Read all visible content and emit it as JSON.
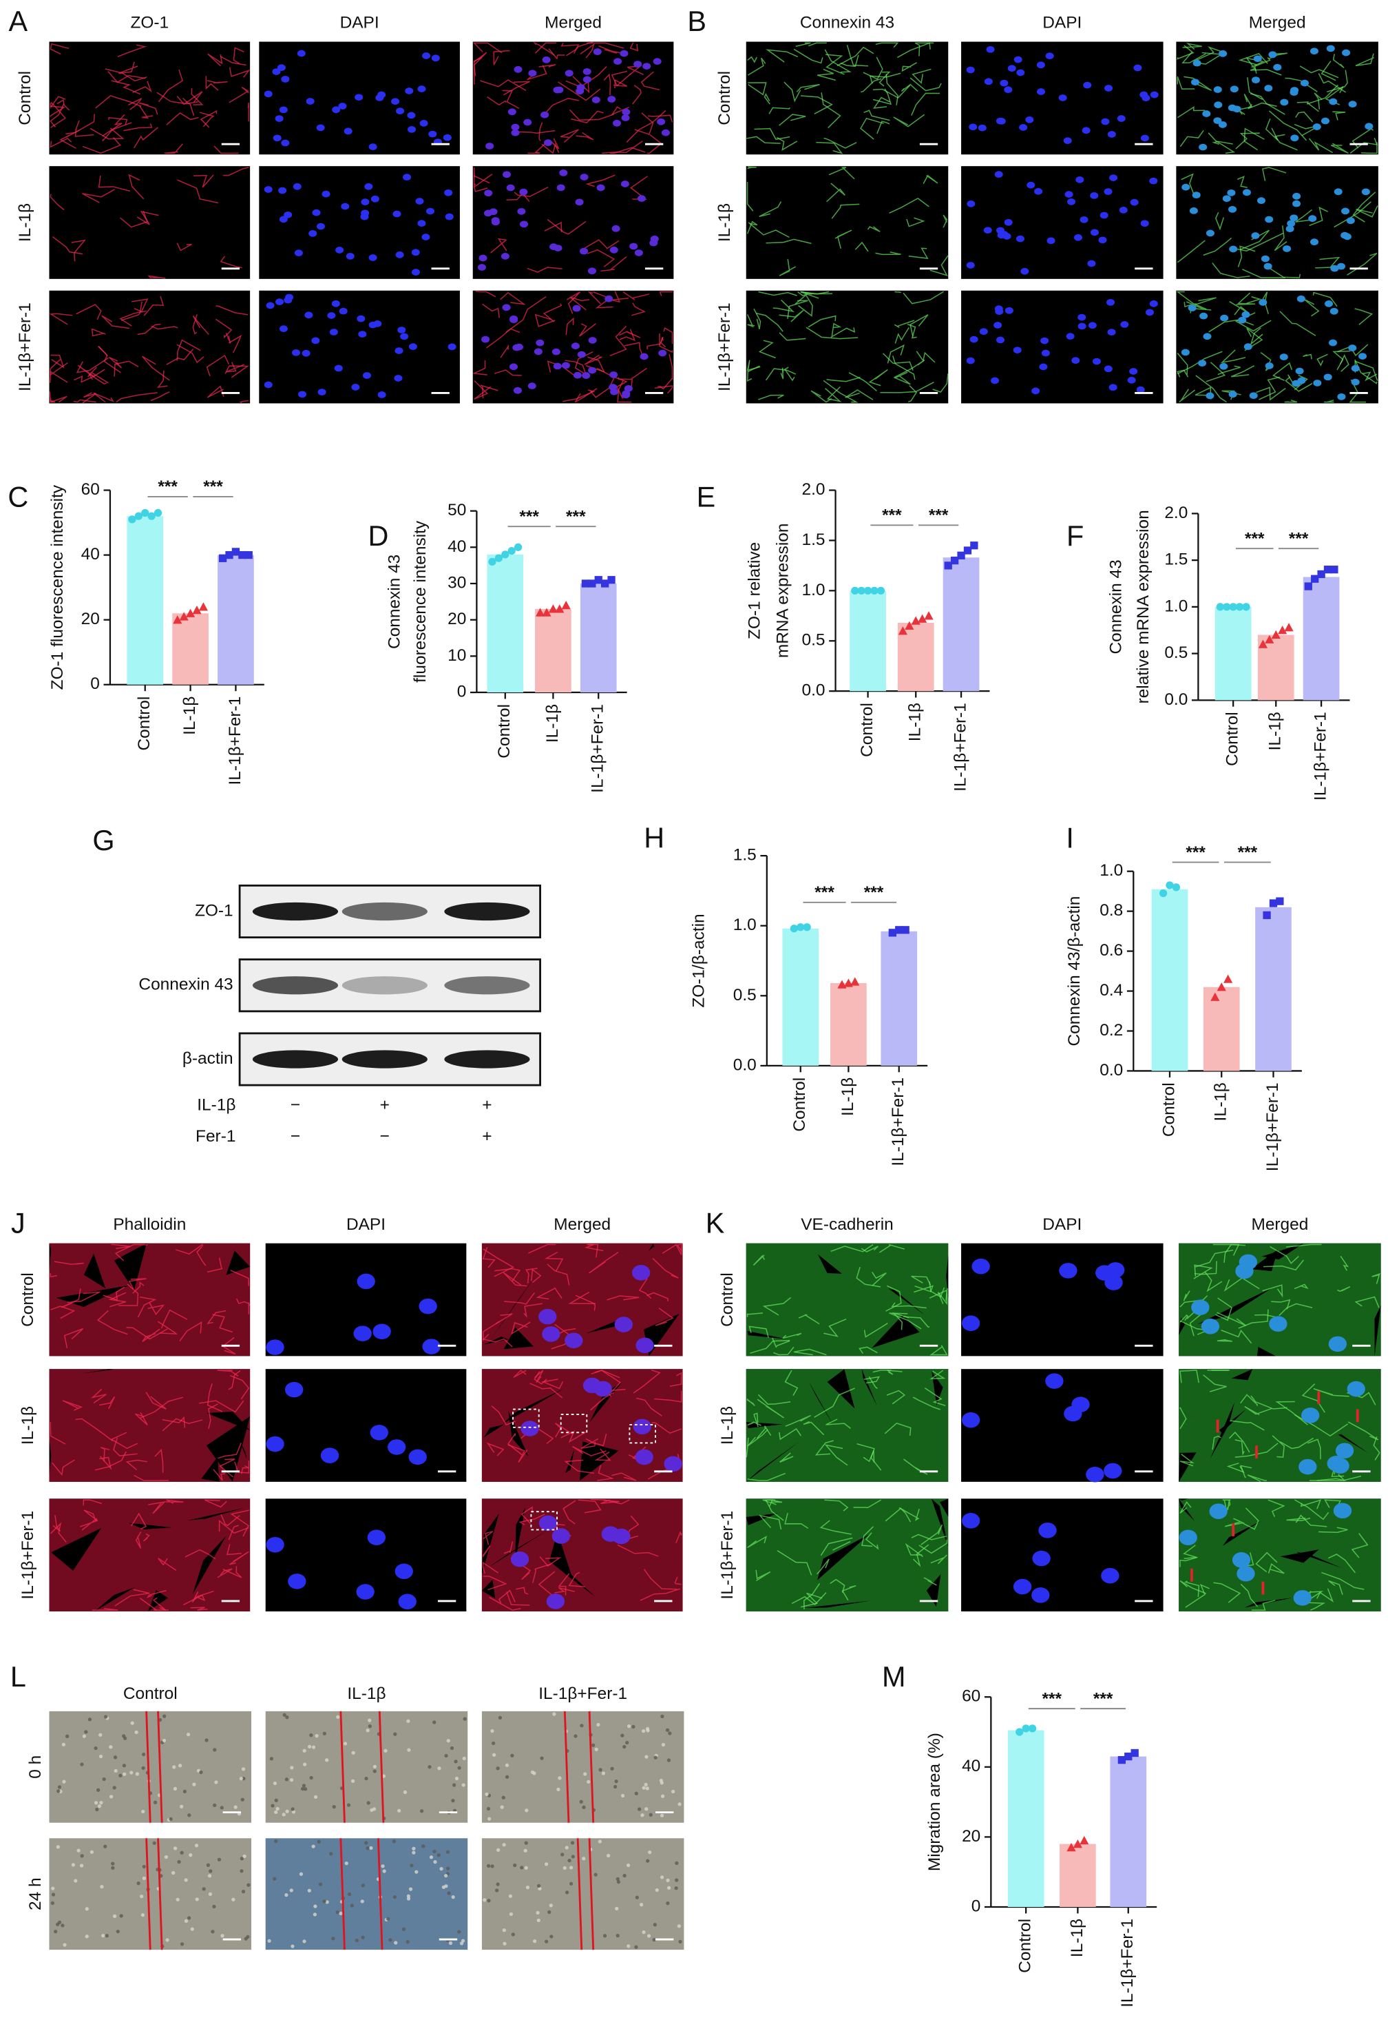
{
  "figure": {
    "A": {
      "letter": "A",
      "channels": [
        {
          "name": "ZO-1",
          "color": "#e4202e"
        },
        {
          "name": "DAPI",
          "color": "#2f6ed8"
        },
        {
          "name": "Merged",
          "color": "#8e35c8"
        }
      ],
      "rows": [
        "Control",
        "IL-1β",
        "IL-1β+Fer-1"
      ]
    },
    "B": {
      "letter": "B",
      "channels": [
        {
          "name": "Connexin 43",
          "color": "#27a83a"
        },
        {
          "name": "DAPI",
          "color": "#2f6ed8"
        },
        {
          "name": "Merged",
          "color": "#1fb3d8"
        }
      ],
      "rows": [
        "Control",
        "IL-1β",
        "IL-1β+Fer-1"
      ]
    },
    "G": {
      "letter": "G",
      "bands": [
        "ZO-1",
        "Connexin 43",
        "β-actin"
      ],
      "treatments": [
        {
          "name": "IL-1β",
          "marks": [
            "−",
            "+",
            "+"
          ]
        },
        {
          "name": "Fer-1",
          "marks": [
            "−",
            "−",
            "+"
          ]
        }
      ]
    },
    "J": {
      "letter": "J",
      "channels": [
        {
          "name": "Phalloidin",
          "color": "#e4202e"
        },
        {
          "name": "DAPI",
          "color": "#2f6ed8"
        },
        {
          "name": "Merged",
          "color": "#8e35c8"
        }
      ],
      "rows": [
        "Control",
        "IL-1β",
        "IL-1β+Fer-1"
      ]
    },
    "K": {
      "letter": "K",
      "channels": [
        {
          "name": "VE-cadherin",
          "color": "#27a83a"
        },
        {
          "name": "DAPI",
          "color": "#2f6ed8"
        },
        {
          "name": "Merged",
          "color": "#1fb3d8"
        }
      ],
      "rows": [
        "Control",
        "IL-1β",
        "IL-1β+Fer-1"
      ]
    },
    "L": {
      "letter": "L",
      "columns": [
        "Control",
        "IL-1β",
        "IL-1β+Fer-1"
      ],
      "rows": [
        "0 h",
        "24 h"
      ]
    }
  },
  "chart_data": [
    {
      "type": "bar",
      "letter": "C",
      "ylabel": [
        "ZO-1 fluorescence intensity"
      ],
      "categories": [
        "Control",
        "IL-1β",
        "IL-1β+Fer-1"
      ],
      "values": [
        52,
        22,
        40
      ],
      "points": [
        [
          51,
          52,
          53,
          52,
          53
        ],
        [
          20,
          21,
          22,
          23,
          24
        ],
        [
          39,
          40,
          41,
          40,
          40
        ]
      ],
      "colors": [
        "#a6f6f6",
        "#f8b9b9",
        "#b9b9f7"
      ],
      "point_colors": [
        "#3fd3e3",
        "#e8333a",
        "#3535e0"
      ],
      "ylim": [
        0,
        60
      ],
      "yticks": [
        0,
        20,
        40,
        60
      ],
      "significance": [
        "***",
        "***"
      ]
    },
    {
      "type": "bar",
      "letter": "D",
      "ylabel": [
        "Connexin 43",
        "fluorescence intensity"
      ],
      "categories": [
        "Control",
        "IL-1β",
        "IL-1β+Fer-1"
      ],
      "values": [
        38,
        23,
        30
      ],
      "points": [
        [
          36,
          37,
          38,
          39,
          40
        ],
        [
          22,
          22,
          23,
          23,
          24
        ],
        [
          30,
          30,
          31,
          30,
          31
        ]
      ],
      "colors": [
        "#a6f6f6",
        "#f8b9b9",
        "#b9b9f7"
      ],
      "point_colors": [
        "#3fd3e3",
        "#e8333a",
        "#3535e0"
      ],
      "ylim": [
        0,
        50
      ],
      "yticks": [
        0,
        10,
        20,
        30,
        40,
        50
      ],
      "significance": [
        "***",
        "***"
      ]
    },
    {
      "type": "bar",
      "letter": "E",
      "ylabel": [
        "ZO-1 relative",
        "mRNA expression"
      ],
      "categories": [
        "Control",
        "IL-1β",
        "IL-1β+Fer-1"
      ],
      "values": [
        1,
        0.68,
        1.33
      ],
      "points": [
        [
          1,
          1,
          1,
          1,
          1
        ],
        [
          0.6,
          0.65,
          0.7,
          0.72,
          0.75
        ],
        [
          1.25,
          1.3,
          1.35,
          1.4,
          1.45
        ]
      ],
      "colors": [
        "#a6f6f6",
        "#f8b9b9",
        "#b9b9f7"
      ],
      "point_colors": [
        "#3fd3e3",
        "#e8333a",
        "#3535e0"
      ],
      "ylim": [
        0,
        2
      ],
      "yticks": [
        {
          "value": 0,
          "label": "0.0"
        },
        0.5,
        {
          "value": 1,
          "label": "1.0"
        },
        1.5,
        {
          "value": 2,
          "label": "2.0"
        }
      ],
      "significance": [
        "***",
        "***"
      ]
    },
    {
      "type": "bar",
      "letter": "F",
      "ylabel": [
        "Connexin 43",
        "relative mRNA expression"
      ],
      "categories": [
        "Control",
        "IL-1β",
        "IL-1β+Fer-1"
      ],
      "values": [
        1,
        0.7,
        1.32
      ],
      "points": [
        [
          1,
          1,
          1,
          1,
          1
        ],
        [
          0.6,
          0.65,
          0.7,
          0.75,
          0.78
        ],
        [
          1.22,
          1.3,
          1.35,
          1.4,
          1.4
        ]
      ],
      "colors": [
        "#a6f6f6",
        "#f8b9b9",
        "#b9b9f7"
      ],
      "point_colors": [
        "#3fd3e3",
        "#e8333a",
        "#3535e0"
      ],
      "ylim": [
        0,
        2
      ],
      "yticks": [
        {
          "value": 0,
          "label": "0.0"
        },
        0.5,
        {
          "value": 1,
          "label": "1.0"
        },
        1.5,
        {
          "value": 2,
          "label": "2.0"
        }
      ],
      "significance": [
        "***",
        "***"
      ]
    },
    {
      "type": "bar",
      "letter": "H",
      "ylabel": [
        "ZO-1/β-actin"
      ],
      "categories": [
        "Control",
        "IL-1β",
        "IL-1β+Fer-1"
      ],
      "values": [
        0.98,
        0.59,
        0.96
      ],
      "points": [
        [
          0.98,
          0.99,
          0.99
        ],
        [
          0.58,
          0.59,
          0.6
        ],
        [
          0.95,
          0.97,
          0.97
        ]
      ],
      "colors": [
        "#a6f6f6",
        "#f8b9b9",
        "#b9b9f7"
      ],
      "point_colors": [
        "#3fd3e3",
        "#e8333a",
        "#3535e0"
      ],
      "ylim": [
        0,
        1.5
      ],
      "yticks": [
        {
          "value": 0,
          "label": "0.0"
        },
        0.5,
        {
          "value": 1,
          "label": "1.0"
        },
        1.5
      ],
      "significance": [
        "***",
        "***"
      ]
    },
    {
      "type": "bar",
      "letter": "I",
      "ylabel": [
        "Connexin 43/β-actin"
      ],
      "categories": [
        "Control",
        "IL-1β",
        "IL-1β+Fer-1"
      ],
      "values": [
        0.91,
        0.42,
        0.82
      ],
      "points": [
        [
          0.89,
          0.93,
          0.92
        ],
        [
          0.37,
          0.42,
          0.46
        ],
        [
          0.78,
          0.84,
          0.85
        ]
      ],
      "colors": [
        "#a6f6f6",
        "#f8b9b9",
        "#b9b9f7"
      ],
      "point_colors": [
        "#3fd3e3",
        "#e8333a",
        "#3535e0"
      ],
      "ylim": [
        0,
        1
      ],
      "yticks": [
        {
          "value": 0,
          "label": "0.0"
        },
        0.2,
        0.4,
        0.6,
        0.8,
        {
          "value": 1,
          "label": "1.0"
        }
      ],
      "significance": [
        "***",
        "***"
      ]
    },
    {
      "type": "bar",
      "letter": "M",
      "ylabel": [
        "Migration area (%)"
      ],
      "categories": [
        "Control",
        "IL-1β",
        "IL-1β+Fer-1"
      ],
      "values": [
        50.5,
        18,
        43
      ],
      "points": [
        [
          50,
          51,
          51
        ],
        [
          17,
          18,
          19
        ],
        [
          42,
          43,
          44
        ]
      ],
      "colors": [
        "#a6f6f6",
        "#f8b9b9",
        "#b9b9f7"
      ],
      "point_colors": [
        "#3fd3e3",
        "#e8333a",
        "#3535e0"
      ],
      "ylim": [
        0,
        60
      ],
      "yticks": [
        0,
        20,
        40,
        60
      ],
      "significance": [
        "***",
        "***"
      ]
    }
  ]
}
